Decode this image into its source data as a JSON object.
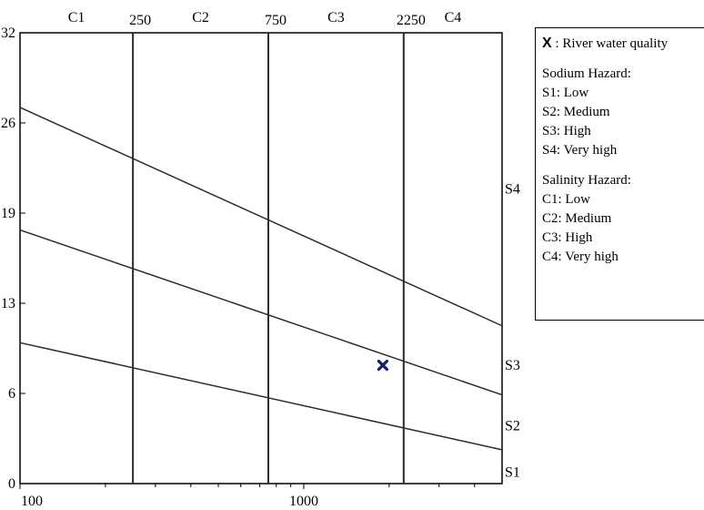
{
  "chart_data": {
    "type": "line",
    "x_axis": {
      "scale": "log",
      "range": [
        100,
        5000
      ],
      "tick_labels": [
        "100",
        "1000"
      ],
      "tick_values": [
        100,
        1000
      ],
      "minor_ticks": [
        200,
        300,
        400,
        500,
        600,
        700,
        800,
        900,
        2000,
        3000,
        4000
      ]
    },
    "y_axis": {
      "range": [
        0,
        32
      ],
      "tick_values": [
        0,
        6.4,
        12.8,
        19.2,
        25.6,
        32
      ],
      "tick_labels": [
        "0",
        "6",
        "13",
        "19",
        "26",
        "32"
      ]
    },
    "salinity_boundaries": [
      {
        "x": 250,
        "label": "250"
      },
      {
        "x": 750,
        "label": "750"
      },
      {
        "x": 2250,
        "label": "2250"
      }
    ],
    "salinity_classes": [
      "C1",
      "C2",
      "C3",
      "C4"
    ],
    "sodium_lines": [
      {
        "x": [
          100,
          5000
        ],
        "y": [
          26.7,
          11.2
        ]
      },
      {
        "x": [
          100,
          5000
        ],
        "y": [
          18.0,
          6.3
        ]
      },
      {
        "x": [
          100,
          5000
        ],
        "y": [
          10.0,
          2.4
        ]
      }
    ],
    "sodium_class_labels": [
      "S4",
      "S3",
      "S2",
      "S1"
    ],
    "sodium_label_y": [
      20.9,
      8.4,
      4.1,
      0.8
    ],
    "river_point": {
      "x": 1900,
      "y": 8.4
    }
  },
  "legend": {
    "marker_symbol": "X",
    "marker_text": " : River water quality",
    "sodium_title": "Sodium Hazard:",
    "sodium_items": [
      "S1: Low",
      "S2: Medium",
      "S3:  High",
      "S4: Very high"
    ],
    "salinity_title": "Salinity Hazard:",
    "salinity_items": [
      "C1:  Low",
      "C2: Medium",
      "C3: High",
      "C4: Very high"
    ]
  },
  "colors": {
    "lines": "#2b2b2b",
    "marker": "#1a1f6b",
    "axis": "#000000"
  }
}
